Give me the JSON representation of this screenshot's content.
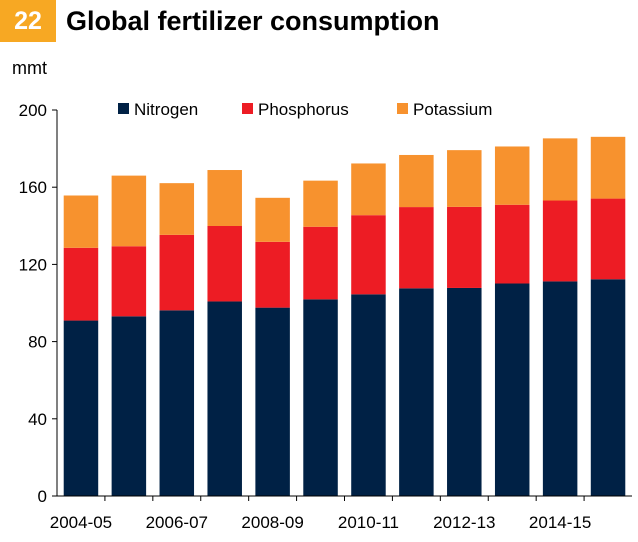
{
  "header": {
    "badge": "22",
    "title": "Global fertilizer consumption"
  },
  "chart_data": {
    "type": "bar",
    "stacked": true,
    "title": "Global fertilizer consumption",
    "unit_label": "mmt",
    "xlabel": "",
    "ylabel": "mmt",
    "ylim": [
      0,
      200
    ],
    "yticks": [
      0,
      40,
      80,
      120,
      160,
      200
    ],
    "categories": [
      "2004-05",
      "2005-06",
      "2006-07",
      "2007-08",
      "2008-09",
      "2009-10",
      "2010-11",
      "2011-12",
      "2012-13",
      "2013-14",
      "2014-15",
      "2015-16"
    ],
    "xtick_labels": [
      "2004-05",
      "2006-07",
      "2008-09",
      "2010-11",
      "2012-13",
      "2014-15"
    ],
    "legend_position": "top",
    "grid": false,
    "series": [
      {
        "name": "Nitrogen",
        "color": "#002145",
        "values": [
          90.9,
          93.1,
          96.2,
          100.8,
          97.6,
          101.9,
          104.5,
          107.6,
          107.8,
          110.1,
          111.2,
          112.3
        ]
      },
      {
        "name": "Phosphorus",
        "color": "#ed1c24",
        "values": [
          37.7,
          36.3,
          39.1,
          39.1,
          34.1,
          37.6,
          41.0,
          42.1,
          42.0,
          40.8,
          41.9,
          41.8
        ]
      },
      {
        "name": "Potassium",
        "color": "#f7922e",
        "values": [
          27.1,
          36.6,
          26.8,
          29.0,
          22.8,
          23.9,
          26.8,
          27.0,
          29.4,
          30.2,
          32.2,
          32.0
        ]
      }
    ]
  }
}
